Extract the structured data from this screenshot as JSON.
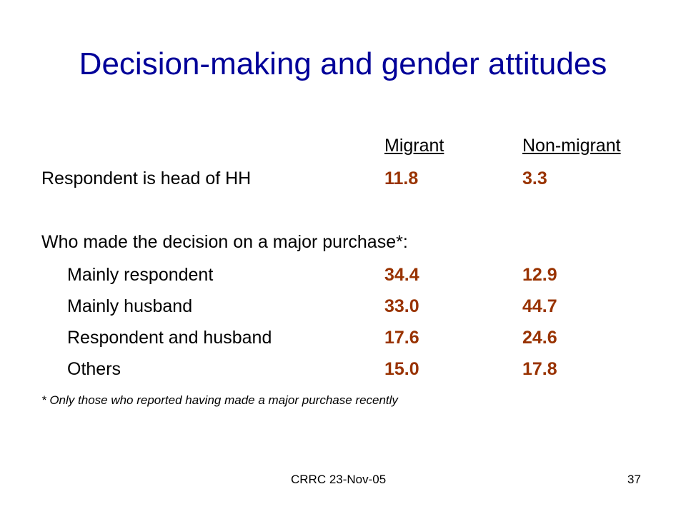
{
  "slide": {
    "title": "Decision-making and gender attitudes"
  },
  "table": {
    "columns": [
      "Migrant",
      "Non-migrant"
    ],
    "head_of_hh": {
      "label": "Respondent is head of HH",
      "migrant": "11.8",
      "non_migrant": "3.3"
    },
    "purchase_question": "Who made the decision on a major purchase*:",
    "rows": [
      {
        "label": "Mainly respondent",
        "migrant": "34.4",
        "non_migrant": "12.9"
      },
      {
        "label": "Mainly husband",
        "migrant": "33.0",
        "non_migrant": "44.7"
      },
      {
        "label": "Respondent and husband",
        "migrant": "17.6",
        "non_migrant": "24.6"
      },
      {
        "label": "Others",
        "migrant": "15.0",
        "non_migrant": "17.8"
      }
    ]
  },
  "footnote": "* Only those who reported having made a major purchase recently",
  "footer": {
    "source": "CRRC 23-Nov-05",
    "page_number": "37"
  },
  "colors": {
    "title": "#000099",
    "values": "#993300",
    "text": "#000000",
    "background": "#ffffff"
  }
}
